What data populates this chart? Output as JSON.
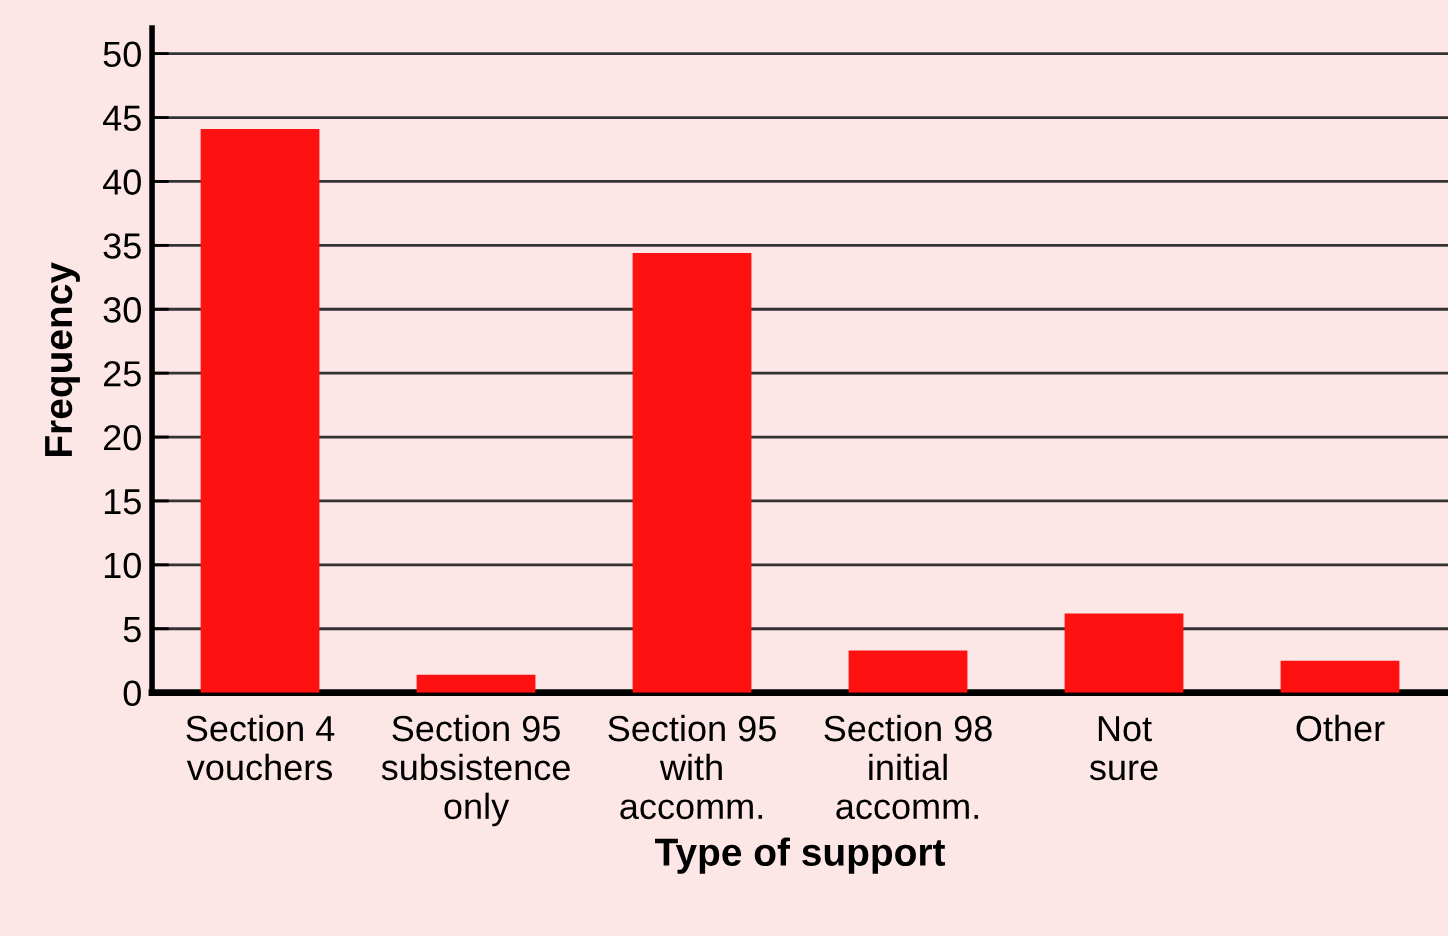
{
  "chart_data": {
    "type": "bar",
    "xlabel": "Type of support",
    "ylabel": "Frequency",
    "categories": [
      "Section 4\nvouchers",
      "Section 95\nsubsistence\nonly",
      "Section 95\nwith\naccomm.",
      "Section 98\ninitial\naccomm.",
      "Not\nsure",
      "Other"
    ],
    "values": [
      44.1,
      1.4,
      34.4,
      3.3,
      6.2,
      2.5
    ],
    "color": "#ff1111",
    "ylim": [
      0,
      52
    ],
    "yticks": [
      0,
      5,
      10,
      15,
      20,
      25,
      30,
      35,
      40,
      45,
      50
    ],
    "grid": "y"
  }
}
